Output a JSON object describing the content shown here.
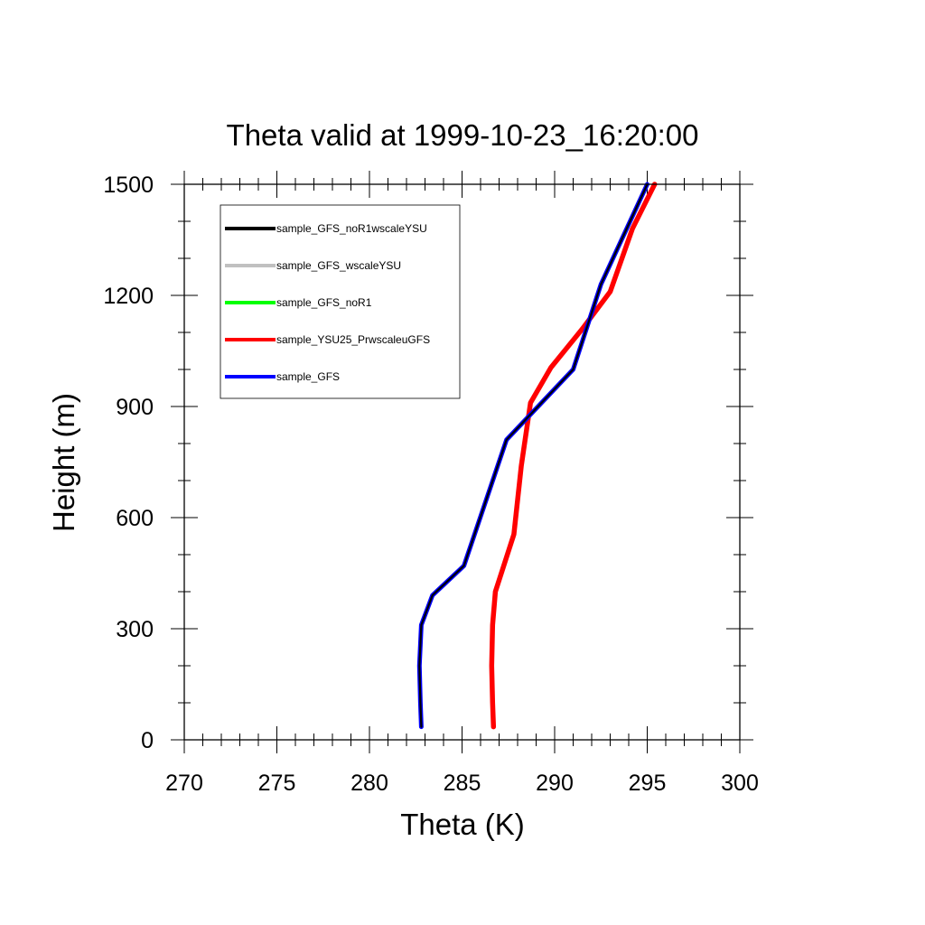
{
  "chart_data": {
    "type": "line",
    "title": "Theta valid at 1999-10-23_16:20:00",
    "xlabel": "Theta (K)",
    "ylabel": "Height (m)",
    "xlim": [
      270,
      300
    ],
    "ylim": [
      0,
      1500
    ],
    "xticks": [
      "270",
      "275",
      "280",
      "285",
      "290",
      "295",
      "300"
    ],
    "yticks": [
      "0",
      "300",
      "600",
      "900",
      "1200",
      "1500"
    ],
    "x_tick_values": [
      270,
      275,
      280,
      285,
      290,
      295,
      300
    ],
    "y_tick_values": [
      0,
      300,
      600,
      900,
      1200,
      1500
    ],
    "grid": false,
    "legend_position": "top-left",
    "series": [
      {
        "name": "sample_GFS_noR1wscaleYSU",
        "color": "#000000",
        "points": [
          [
            282.8,
            35
          ],
          [
            282.75,
            100
          ],
          [
            282.7,
            200
          ],
          [
            282.8,
            310
          ],
          [
            283.4,
            390
          ],
          [
            285.1,
            470
          ],
          [
            287.4,
            810
          ],
          [
            291.0,
            1000
          ],
          [
            292.5,
            1230
          ],
          [
            295.0,
            1500
          ]
        ]
      },
      {
        "name": "sample_GFS_wscaleYSU",
        "color": "#c0c0c0",
        "points": [
          [
            282.8,
            35
          ],
          [
            282.75,
            100
          ],
          [
            282.7,
            200
          ],
          [
            282.8,
            310
          ],
          [
            283.4,
            390
          ],
          [
            285.1,
            470
          ],
          [
            287.4,
            810
          ],
          [
            291.0,
            1000
          ],
          [
            292.5,
            1230
          ],
          [
            295.0,
            1500
          ]
        ]
      },
      {
        "name": "sample_GFS_noR1",
        "color": "#00ff00",
        "points": [
          [
            282.8,
            35
          ],
          [
            282.75,
            100
          ],
          [
            282.7,
            200
          ],
          [
            282.8,
            310
          ],
          [
            283.4,
            390
          ],
          [
            285.1,
            470
          ],
          [
            287.4,
            810
          ],
          [
            291.0,
            1000
          ],
          [
            292.5,
            1230
          ],
          [
            295.0,
            1500
          ]
        ]
      },
      {
        "name": "sample_YSU25_PrwscaleuGFS",
        "color": "#ff0000",
        "points": [
          [
            286.7,
            35
          ],
          [
            286.65,
            100
          ],
          [
            286.6,
            200
          ],
          [
            286.65,
            310
          ],
          [
            286.8,
            400
          ],
          [
            287.8,
            555
          ],
          [
            288.2,
            740
          ],
          [
            288.7,
            910
          ],
          [
            289.8,
            1005
          ],
          [
            291.5,
            1110
          ],
          [
            293.0,
            1210
          ],
          [
            294.2,
            1380
          ],
          [
            295.4,
            1500
          ]
        ]
      },
      {
        "name": "sample_GFS",
        "color": "#0000ff",
        "points": [
          [
            282.8,
            35
          ],
          [
            282.75,
            100
          ],
          [
            282.7,
            200
          ],
          [
            282.8,
            310
          ],
          [
            283.4,
            390
          ],
          [
            285.1,
            470
          ],
          [
            287.4,
            810
          ],
          [
            291.0,
            1000
          ],
          [
            292.5,
            1230
          ],
          [
            295.0,
            1500
          ]
        ]
      }
    ]
  }
}
